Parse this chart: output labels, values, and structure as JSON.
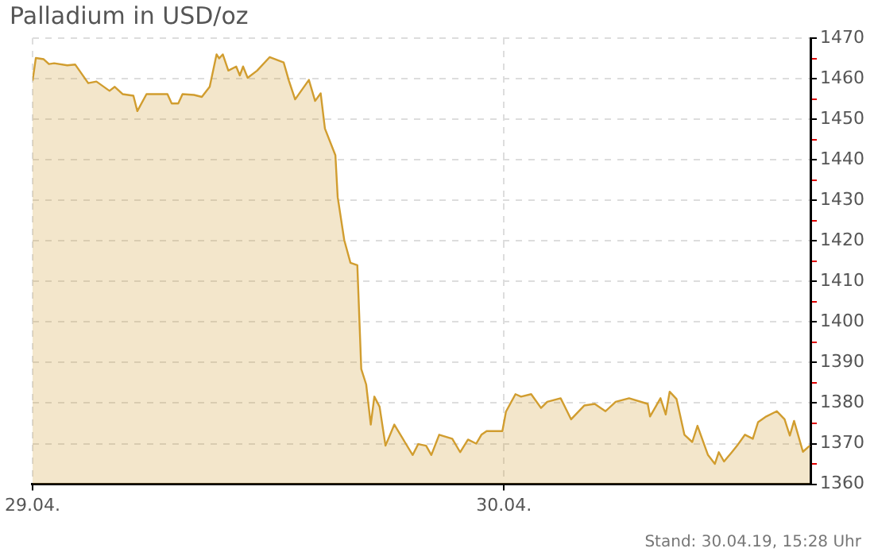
{
  "chart_data": {
    "type": "area",
    "title": "Palladium in USD/oz",
    "annotations": [
      "Stand: 30.04.19, 15:28 Uhr"
    ],
    "x": [
      "--04-29T00:00",
      "--04-29T00:10",
      "--04-29T00:34",
      "--04-29T00:50",
      "--04-29T01:06",
      "--04-29T01:46",
      "--04-29T02:10",
      "--04-29T02:50",
      "--04-29T03:15",
      "--04-29T03:55",
      "--04-29T04:11",
      "--04-29T04:35",
      "--04-29T05:08",
      "--04-29T05:20",
      "--04-29T05:48",
      "--04-29T06:52",
      "--04-29T07:05",
      "--04-29T07:25",
      "--04-29T07:38",
      "--04-29T08:13",
      "--04-29T08:37",
      "--04-29T09:01",
      "--04-29T09:22",
      "--04-29T09:30",
      "--04-29T09:41",
      "--04-29T09:58",
      "--04-29T10:22",
      "--04-29T10:33",
      "--04-29T10:43",
      "--04-29T10:57",
      "--04-29T11:26",
      "--04-29T12:04",
      "--04-29T12:47",
      "--04-29T13:03",
      "--04-29T13:22",
      "--04-29T14:04",
      "--04-29T14:23",
      "--04-29T14:40",
      "--04-29T14:53",
      "--04-29T15:25",
      "--04-29T15:32",
      "--04-29T15:52",
      "--04-29T16:11",
      "--04-29T16:32",
      "--04-29T16:44",
      "--04-29T16:59",
      "--04-29T17:13",
      "--04-29T17:24",
      "--04-29T17:40",
      "--04-29T17:58",
      "--04-29T18:25",
      "--04-29T18:57",
      "--04-29T19:21",
      "--04-29T19:38",
      "--04-29T20:02",
      "--04-29T20:18",
      "--04-29T20:42",
      "--04-29T21:22",
      "--04-29T21:46",
      "--04-29T22:10",
      "--04-29T22:35",
      "--04-29T22:51",
      "--04-29T23:07",
      "--04-29T23:55",
      "--04-30T00:06",
      "--04-30T00:35",
      "--04-30T00:52",
      "--04-30T01:23",
      "--04-30T01:53",
      "--04-30T02:12",
      "--04-30T02:53",
      "--04-30T03:25",
      "--04-30T04:05",
      "--04-30T04:37",
      "--04-30T05:10",
      "--04-30T05:41",
      "--04-30T06:22",
      "--04-30T07:19",
      "--04-30T07:26",
      "--04-30T07:58",
      "--04-30T08:14",
      "--04-30T08:26",
      "--04-30T08:47",
      "--04-30T09:11",
      "--04-30T09:35",
      "--04-30T09:51",
      "--04-30T10:23",
      "--04-30T10:44",
      "--04-30T10:56",
      "--04-30T11:12",
      "--04-30T11:36",
      "--04-30T11:52",
      "--04-30T12:16",
      "--04-30T12:40",
      "--04-30T12:56",
      "--04-30T13:21",
      "--04-30T13:53",
      "--04-30T14:17",
      "--04-30T14:33",
      "--04-30T14:46",
      "--04-30T15:13",
      "--04-30T15:34"
    ],
    "series": [
      {
        "color": "#d19d2f",
        "values": [
          1459.5,
          1465.1,
          1464.8,
          1463.6,
          1463.8,
          1463.3,
          1463.5,
          1458.9,
          1459.3,
          1457,
          1458,
          1456.2,
          1455.8,
          1452,
          1456.2,
          1456.2,
          1453.9,
          1453.9,
          1456.2,
          1456,
          1455.5,
          1458,
          1466,
          1465,
          1466,
          1462,
          1463,
          1460.8,
          1463,
          1460.2,
          1462,
          1465.3,
          1464,
          1459.5,
          1454.9,
          1459.7,
          1454.5,
          1456.4,
          1447.7,
          1441.1,
          1430.8,
          1420.2,
          1414.6,
          1414,
          1388.4,
          1384.6,
          1374.7,
          1381.6,
          1379.1,
          1369.5,
          1374.7,
          1370.4,
          1367.2,
          1369.9,
          1369.5,
          1367.2,
          1372.2,
          1371.2,
          1367.9,
          1371,
          1370,
          1372.2,
          1373.1,
          1373.1,
          1377.9,
          1382.2,
          1381.6,
          1382.2,
          1378.8,
          1380.3,
          1381.2,
          1376,
          1379.4,
          1379.8,
          1378,
          1380.3,
          1381.2,
          1379.8,
          1376.7,
          1381.2,
          1377.2,
          1382.8,
          1381,
          1372.2,
          1370.4,
          1374.4,
          1367.2,
          1365,
          1367.9,
          1365.6,
          1367.9,
          1369.5,
          1372.2,
          1371.2,
          1375.3,
          1376.7,
          1378,
          1376,
          1372,
          1375.6,
          1368,
          1369.5
        ]
      }
    ],
    "xlim": [
      "--04-29T00:00",
      "--04-30T15:36"
    ],
    "xticks": [
      {
        "value": "--04-29",
        "label": "29.04."
      },
      {
        "value": "--04-30",
        "label": "30.04."
      }
    ],
    "ylim": [
      1360,
      1470
    ],
    "yticks": [
      1360,
      {
        "value": 1365,
        "label": null
      },
      1370,
      {
        "value": 1375,
        "label": null
      },
      1380,
      {
        "value": 1385,
        "label": null
      },
      1390,
      {
        "value": 1395,
        "label": null
      },
      1400,
      {
        "value": 1405,
        "label": null
      },
      1410,
      {
        "value": 1415,
        "label": null
      },
      1420,
      {
        "value": 1425,
        "label": null
      },
      1430,
      {
        "value": 1435,
        "label": null
      },
      1440,
      {
        "value": 1445,
        "label": null
      },
      1450,
      {
        "value": 1455,
        "label": null
      },
      1460,
      {
        "value": 1465,
        "label": null
      },
      1470
    ],
    "grid": true
  }
}
